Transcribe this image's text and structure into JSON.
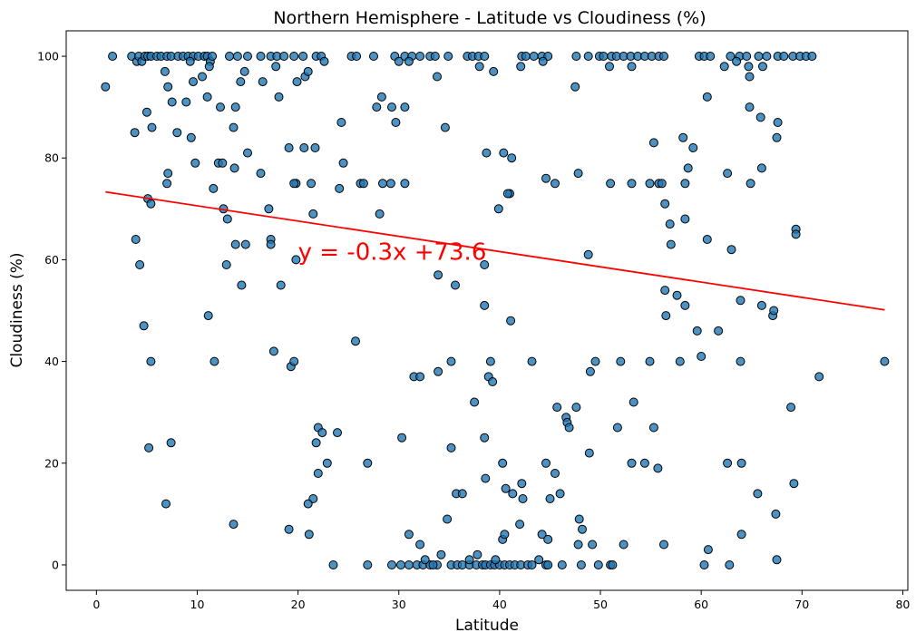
{
  "chart_data": {
    "type": "scatter",
    "title": "Northern Hemisphere - Latitude vs Cloudiness (%)",
    "xlabel": "Latitude",
    "ylabel": "Cloudiness (%)",
    "xlim": [
      -3,
      80.5
    ],
    "ylim": [
      -5,
      105
    ],
    "xticks": [
      0,
      10,
      20,
      30,
      40,
      50,
      60,
      70,
      80
    ],
    "yticks": [
      0,
      20,
      40,
      60,
      80,
      100
    ],
    "grid": false,
    "point_color": "#1f77b4",
    "regression": {
      "equation": "y = -0.3x +73.6",
      "slope": -0.3,
      "intercept": 73.6,
      "x_range": [
        0.9,
        78.2
      ],
      "line_color": "#ff0000",
      "label_position": [
        20,
        60
      ]
    },
    "points": [
      [
        0.9,
        94
      ],
      [
        1.6,
        100
      ],
      [
        3.5,
        100
      ],
      [
        4.0,
        99
      ],
      [
        4.2,
        100
      ],
      [
        4.5,
        99
      ],
      [
        4.8,
        100
      ],
      [
        5.1,
        100
      ],
      [
        5.4,
        100
      ],
      [
        6.0,
        100
      ],
      [
        6.4,
        100
      ],
      [
        7.0,
        100
      ],
      [
        7.4,
        100
      ],
      [
        8.1,
        100
      ],
      [
        8.6,
        100
      ],
      [
        9.1,
        100
      ],
      [
        9.6,
        100
      ],
      [
        10.1,
        100
      ],
      [
        10.7,
        100
      ],
      [
        11.0,
        100
      ],
      [
        11.3,
        99
      ],
      [
        11.5,
        100
      ],
      [
        13.2,
        100
      ],
      [
        14.0,
        100
      ],
      [
        15.0,
        100
      ],
      [
        16.3,
        100
      ],
      [
        17.3,
        100
      ],
      [
        17.9,
        100
      ],
      [
        18.6,
        100
      ],
      [
        19.6,
        100
      ],
      [
        20.5,
        100
      ],
      [
        21.8,
        100
      ],
      [
        22.3,
        100
      ],
      [
        22.6,
        99
      ],
      [
        25.3,
        100
      ],
      [
        25.8,
        100
      ],
      [
        27.5,
        100
      ],
      [
        29.6,
        100
      ],
      [
        30.0,
        99
      ],
      [
        30.6,
        100
      ],
      [
        31.3,
        100
      ],
      [
        32.1,
        100
      ],
      [
        33.1,
        100
      ],
      [
        33.6,
        100
      ],
      [
        34.9,
        100
      ],
      [
        36.8,
        100
      ],
      [
        37.3,
        100
      ],
      [
        37.9,
        100
      ],
      [
        38.5,
        100
      ],
      [
        42.2,
        100
      ],
      [
        42.6,
        100
      ],
      [
        43.4,
        100
      ],
      [
        44.2,
        100
      ],
      [
        44.8,
        100
      ],
      [
        47.6,
        100
      ],
      [
        48.8,
        100
      ],
      [
        49.9,
        100
      ],
      [
        50.3,
        100
      ],
      [
        51.1,
        100
      ],
      [
        51.6,
        100
      ],
      [
        52.3,
        100
      ],
      [
        53.0,
        100
      ],
      [
        53.7,
        100
      ],
      [
        54.4,
        100
      ],
      [
        55.1,
        100
      ],
      [
        55.8,
        100
      ],
      [
        56.3,
        100
      ],
      [
        59.8,
        100
      ],
      [
        60.3,
        100
      ],
      [
        60.9,
        100
      ],
      [
        62.9,
        100
      ],
      [
        63.8,
        100
      ],
      [
        64.5,
        100
      ],
      [
        65.7,
        100
      ],
      [
        66.5,
        100
      ],
      [
        67.6,
        100
      ],
      [
        68.2,
        100
      ],
      [
        69.1,
        100
      ],
      [
        69.8,
        100
      ],
      [
        70.4,
        100
      ],
      [
        71.0,
        100
      ],
      [
        5.0,
        89
      ],
      [
        6.8,
        97
      ],
      [
        7.1,
        94
      ],
      [
        7.5,
        91
      ],
      [
        8.9,
        91
      ],
      [
        9.3,
        99
      ],
      [
        9.6,
        95
      ],
      [
        10.5,
        96
      ],
      [
        11.2,
        98
      ],
      [
        11.0,
        92
      ],
      [
        12.3,
        90
      ],
      [
        13.8,
        90
      ],
      [
        14.3,
        95
      ],
      [
        14.7,
        97
      ],
      [
        16.5,
        95
      ],
      [
        17.8,
        98
      ],
      [
        18.1,
        92
      ],
      [
        19.9,
        95
      ],
      [
        20.7,
        96
      ],
      [
        21.0,
        97
      ],
      [
        27.8,
        90
      ],
      [
        28.3,
        92
      ],
      [
        29.3,
        90
      ],
      [
        29.7,
        87
      ],
      [
        30.6,
        90
      ],
      [
        31.0,
        99
      ],
      [
        33.8,
        96
      ],
      [
        34.6,
        86
      ],
      [
        38.0,
        98
      ],
      [
        39.4,
        97
      ],
      [
        42.1,
        98
      ],
      [
        44.3,
        99
      ],
      [
        47.5,
        94
      ],
      [
        50.9,
        98
      ],
      [
        53.1,
        98
      ],
      [
        60.6,
        92
      ],
      [
        62.3,
        98
      ],
      [
        63.5,
        99
      ],
      [
        64.8,
        96
      ],
      [
        64.7,
        98
      ],
      [
        66.1,
        98
      ],
      [
        64.8,
        90
      ],
      [
        65.9,
        88
      ],
      [
        67.6,
        87
      ],
      [
        67.5,
        84
      ],
      [
        3.8,
        85
      ],
      [
        5.5,
        86
      ],
      [
        8.0,
        85
      ],
      [
        9.4,
        84
      ],
      [
        9.8,
        79
      ],
      [
        11.6,
        74
      ],
      [
        12.1,
        79
      ],
      [
        12.5,
        79
      ],
      [
        13.6,
        86
      ],
      [
        13.7,
        78
      ],
      [
        15.0,
        81
      ],
      [
        16.3,
        77
      ],
      [
        17.1,
        70
      ],
      [
        19.1,
        82
      ],
      [
        19.8,
        75
      ],
      [
        19.6,
        75
      ],
      [
        20.6,
        82
      ],
      [
        21.3,
        75
      ],
      [
        21.7,
        82
      ],
      [
        24.1,
        74
      ],
      [
        24.5,
        79
      ],
      [
        24.3,
        87
      ],
      [
        26.2,
        75
      ],
      [
        26.5,
        75
      ],
      [
        28.4,
        75
      ],
      [
        28.1,
        69
      ],
      [
        29.2,
        75
      ],
      [
        30.6,
        75
      ],
      [
        38.7,
        81
      ],
      [
        40.4,
        81
      ],
      [
        41.0,
        73
      ],
      [
        40.8,
        73
      ],
      [
        41.2,
        80
      ],
      [
        39.9,
        70
      ],
      [
        44.6,
        76
      ],
      [
        45.5,
        75
      ],
      [
        47.8,
        77
      ],
      [
        51.0,
        75
      ],
      [
        53.1,
        75
      ],
      [
        54.9,
        75
      ],
      [
        55.3,
        83
      ],
      [
        55.8,
        75
      ],
      [
        56.1,
        75
      ],
      [
        56.4,
        71
      ],
      [
        56.9,
        67
      ],
      [
        58.2,
        84
      ],
      [
        58.4,
        75
      ],
      [
        58.7,
        78
      ],
      [
        59.2,
        82
      ],
      [
        58.4,
        68
      ],
      [
        62.6,
        77
      ],
      [
        64.9,
        75
      ],
      [
        66.0,
        78
      ],
      [
        7.0,
        75
      ],
      [
        7.1,
        77
      ],
      [
        5.1,
        72
      ],
      [
        5.4,
        71
      ],
      [
        12.6,
        70
      ],
      [
        13.0,
        68
      ],
      [
        21.5,
        69
      ],
      [
        3.9,
        64
      ],
      [
        4.3,
        59
      ],
      [
        12.9,
        59
      ],
      [
        13.8,
        63
      ],
      [
        14.8,
        63
      ],
      [
        17.3,
        64
      ],
      [
        17.3,
        63
      ],
      [
        19.8,
        60
      ],
      [
        33.9,
        57
      ],
      [
        35.6,
        55
      ],
      [
        38.5,
        59
      ],
      [
        38.5,
        51
      ],
      [
        41.1,
        48
      ],
      [
        48.8,
        61
      ],
      [
        56.4,
        54
      ],
      [
        56.5,
        49
      ],
      [
        57.0,
        63
      ],
      [
        57.6,
        53
      ],
      [
        58.4,
        51
      ],
      [
        59.6,
        46
      ],
      [
        60.6,
        64
      ],
      [
        61.7,
        46
      ],
      [
        63.0,
        62
      ],
      [
        63.9,
        52
      ],
      [
        66.0,
        51
      ],
      [
        67.1,
        49
      ],
      [
        67.2,
        50
      ],
      [
        69.4,
        66
      ],
      [
        69.4,
        65
      ],
      [
        14.4,
        55
      ],
      [
        18.3,
        55
      ],
      [
        11.1,
        49
      ],
      [
        4.7,
        47
      ],
      [
        5.4,
        40
      ],
      [
        11.7,
        40
      ],
      [
        17.6,
        42
      ],
      [
        19.3,
        39
      ],
      [
        19.6,
        40
      ],
      [
        25.7,
        44
      ],
      [
        31.5,
        37
      ],
      [
        32.1,
        37
      ],
      [
        33.9,
        38
      ],
      [
        35.2,
        40
      ],
      [
        37.5,
        32
      ],
      [
        38.9,
        37
      ],
      [
        39.3,
        36
      ],
      [
        39.1,
        40
      ],
      [
        43.2,
        40
      ],
      [
        45.7,
        31
      ],
      [
        46.6,
        29
      ],
      [
        46.7,
        28
      ],
      [
        46.9,
        27
      ],
      [
        47.6,
        31
      ],
      [
        49.0,
        38
      ],
      [
        49.5,
        40
      ],
      [
        52.0,
        40
      ],
      [
        53.3,
        32
      ],
      [
        54.9,
        40
      ],
      [
        57.9,
        40
      ],
      [
        60.0,
        41
      ],
      [
        63.9,
        40
      ],
      [
        68.9,
        31
      ],
      [
        71.7,
        37
      ],
      [
        78.2,
        40
      ],
      [
        55.3,
        27
      ],
      [
        51.7,
        27
      ],
      [
        5.2,
        23
      ],
      [
        7.4,
        24
      ],
      [
        21.8,
        24
      ],
      [
        22.0,
        27
      ],
      [
        22.4,
        26
      ],
      [
        23.9,
        26
      ],
      [
        22.9,
        20
      ],
      [
        22.0,
        18
      ],
      [
        26.9,
        20
      ],
      [
        30.3,
        25
      ],
      [
        35.2,
        23
      ],
      [
        38.5,
        25
      ],
      [
        38.6,
        17
      ],
      [
        40.3,
        20
      ],
      [
        40.6,
        15
      ],
      [
        41.3,
        14
      ],
      [
        42.2,
        16
      ],
      [
        42.3,
        13
      ],
      [
        44.6,
        20
      ],
      [
        45.5,
        18
      ],
      [
        45.0,
        13
      ],
      [
        46.0,
        14
      ],
      [
        48.2,
        7
      ],
      [
        48.9,
        22
      ],
      [
        53.1,
        20
      ],
      [
        54.4,
        20
      ],
      [
        55.7,
        19
      ],
      [
        62.6,
        20
      ],
      [
        64.0,
        20
      ],
      [
        65.6,
        14
      ],
      [
        69.2,
        16
      ],
      [
        67.4,
        10
      ],
      [
        21.5,
        13
      ],
      [
        21.0,
        12
      ],
      [
        35.7,
        14
      ],
      [
        36.3,
        14
      ],
      [
        6.9,
        12
      ],
      [
        13.6,
        8
      ],
      [
        19.1,
        7
      ],
      [
        21.1,
        6
      ],
      [
        34.8,
        9
      ],
      [
        42.0,
        8
      ],
      [
        47.9,
        9
      ],
      [
        23.5,
        0
      ],
      [
        26.9,
        0
      ],
      [
        29.3,
        0
      ],
      [
        30.2,
        0
      ],
      [
        31.0,
        0
      ],
      [
        31.8,
        0
      ],
      [
        32.4,
        0
      ],
      [
        33.1,
        0
      ],
      [
        33.8,
        0
      ],
      [
        35.2,
        0
      ],
      [
        35.8,
        0
      ],
      [
        36.3,
        0
      ],
      [
        37.0,
        0
      ],
      [
        37.7,
        0
      ],
      [
        38.3,
        0
      ],
      [
        38.6,
        0
      ],
      [
        39.1,
        0
      ],
      [
        39.5,
        0
      ],
      [
        40.0,
        0
      ],
      [
        40.5,
        0
      ],
      [
        41.0,
        0
      ],
      [
        41.5,
        0
      ],
      [
        42.1,
        0
      ],
      [
        42.8,
        0
      ],
      [
        43.2,
        0
      ],
      [
        44.6,
        0
      ],
      [
        44.8,
        0
      ],
      [
        46.2,
        0
      ],
      [
        48.1,
        0
      ],
      [
        49.8,
        0
      ],
      [
        51.0,
        0
      ],
      [
        51.2,
        0
      ],
      [
        60.3,
        0
      ],
      [
        62.8,
        0
      ],
      [
        31.0,
        6
      ],
      [
        32.1,
        4
      ],
      [
        32.6,
        1
      ],
      [
        33.4,
        0
      ],
      [
        34.2,
        2
      ],
      [
        37.0,
        1
      ],
      [
        37.8,
        2
      ],
      [
        39.6,
        1
      ],
      [
        40.3,
        5
      ],
      [
        40.5,
        6
      ],
      [
        43.9,
        1
      ],
      [
        44.2,
        6
      ],
      [
        44.8,
        5
      ],
      [
        47.8,
        4
      ],
      [
        49.2,
        4
      ],
      [
        52.3,
        4
      ],
      [
        56.3,
        4
      ],
      [
        60.7,
        3
      ],
      [
        64.0,
        6
      ],
      [
        67.5,
        1
      ]
    ]
  }
}
